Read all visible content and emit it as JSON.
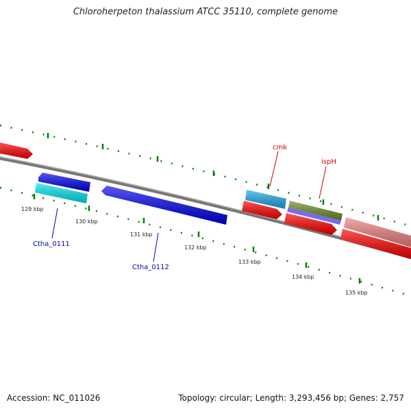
{
  "title": "Chloroherpeton thalassium ATCC 35110, complete genome",
  "footer": {
    "accession": "Accession: NC_011026",
    "summary": "Topology: circular; Length: 3,293,456 bp; Genes: 2,757"
  },
  "ticks": [
    "129 kbp",
    "130 kbp",
    "131 kbp",
    "132 kbp",
    "133 kbp",
    "134 kbp",
    "135 kbp"
  ],
  "gene_labels": {
    "cmk": "cmk",
    "ispH": "ispH",
    "ctha_0111": "Ctha_0111",
    "ctha_0112": "Ctha_0112"
  },
  "colors": {
    "backbone": "#888888",
    "forward_gene": "#ff0000",
    "forward_gene_light": "#f08080",
    "reverse_gene": "#0000ee",
    "cyan_feature": "#00e5ee",
    "light_blue_feature": "#20a8e8",
    "olive_feature": "#6b8e23",
    "purple_feature": "#7b68ee",
    "tick_marks": "#008000"
  }
}
